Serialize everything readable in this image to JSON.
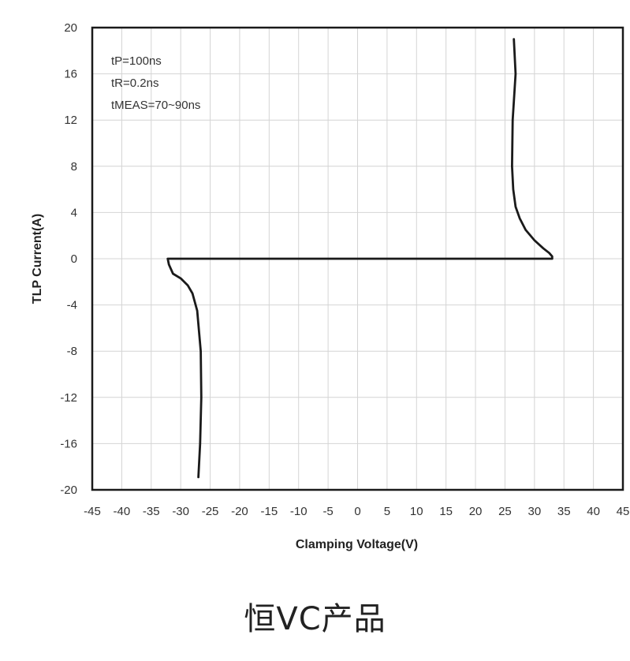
{
  "chart_data": {
    "type": "line",
    "title": "",
    "xlabel": "Clamping Voltage(V)",
    "ylabel": "TLP Current(A)",
    "xlim": [
      -45,
      45
    ],
    "ylim": [
      -20,
      20
    ],
    "x_ticks": [
      -45,
      -40,
      -35,
      -30,
      -25,
      -20,
      -15,
      -10,
      -5,
      0,
      5,
      10,
      15,
      20,
      25,
      30,
      35,
      40,
      45
    ],
    "y_ticks": [
      20,
      16,
      12,
      8,
      4,
      0,
      -4,
      -8,
      -12,
      -16,
      -20
    ],
    "grid": true,
    "annotations": [
      "tP=100ns",
      "tR=0.2ns",
      "tMEAS=70~90ns"
    ],
    "series": [
      {
        "color": "#1a1a1a",
        "points": [
          [
            26.5,
            19.0
          ],
          [
            26.8,
            16.0
          ],
          [
            26.3,
            12.0
          ],
          [
            26.2,
            8.0
          ],
          [
            26.4,
            6.0
          ],
          [
            26.8,
            4.5
          ],
          [
            27.5,
            3.5
          ],
          [
            28.5,
            2.5
          ],
          [
            30.0,
            1.6
          ],
          [
            31.5,
            0.9
          ],
          [
            32.5,
            0.5
          ],
          [
            33.0,
            0.2
          ],
          [
            33.0,
            0.0
          ],
          [
            -32.2,
            0.0
          ],
          [
            -32.0,
            -0.5
          ],
          [
            -31.3,
            -1.3
          ],
          [
            -30.0,
            -1.7
          ],
          [
            -28.8,
            -2.3
          ],
          [
            -28.0,
            -3.0
          ],
          [
            -27.2,
            -4.5
          ],
          [
            -26.6,
            -8.0
          ],
          [
            -26.5,
            -12.0
          ],
          [
            -26.7,
            -16.0
          ],
          [
            -27.0,
            -18.9
          ]
        ]
      }
    ]
  },
  "caption": "恒VC产品"
}
